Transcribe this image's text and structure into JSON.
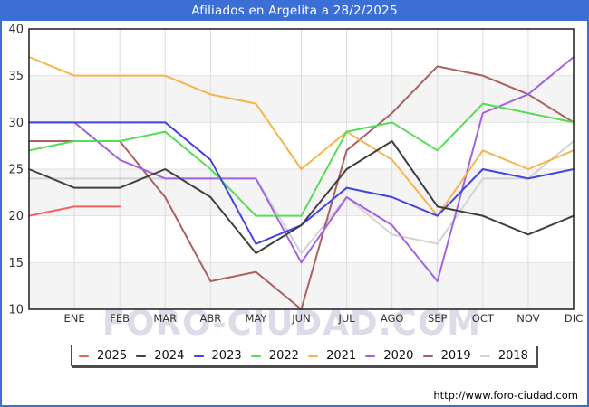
{
  "title": "Afiliados en Argelita a 28/2/2025",
  "watermark": "FORO-CIUDAD.COM",
  "footer": {
    "url_label": "http://www.foro-ciudad.com"
  },
  "colors": {
    "frame_blue": "#3b6fd6",
    "band_gray": "#f4f4f4",
    "grid_h": "#e2e2e2",
    "grid_v": "#dcdcdc",
    "plot_border": "#2a2a2a",
    "axis_text": "#333333",
    "watermark_fill": "#dcdce9"
  },
  "chart_data": {
    "type": "line",
    "title": "Afiliados en Argelita a 28/2/2025",
    "x_labels": [
      "ENE",
      "FEB",
      "MAR",
      "ABR",
      "MAY",
      "JUN",
      "JUL",
      "AGO",
      "SEP",
      "OCT",
      "NOV",
      "DIC"
    ],
    "note": "Each series has 13 points: the first is the unlabeled value at the plot's left edge, followed by one value per month gridline. 2025 data ends at FEB.",
    "ylim": [
      10,
      40
    ],
    "y_ticks": [
      10,
      15,
      20,
      25,
      30,
      35,
      40
    ],
    "grid": true,
    "legend_position": "bottom",
    "band_fill_ranges": [
      [
        10,
        15
      ],
      [
        20,
        25
      ],
      [
        30,
        35
      ]
    ],
    "series": [
      {
        "name": "2025",
        "color": "#f26060",
        "values": [
          20,
          21,
          21
        ]
      },
      {
        "name": "2024",
        "color": "#404040",
        "values": [
          25,
          23,
          23,
          25,
          22,
          16,
          19,
          25,
          28,
          21,
          20,
          18,
          20
        ]
      },
      {
        "name": "2023",
        "color": "#4444e0",
        "values": [
          30,
          30,
          30,
          30,
          26,
          17,
          19,
          23,
          22,
          20,
          25,
          24,
          25
        ]
      },
      {
        "name": "2022",
        "color": "#55dd55",
        "values": [
          27,
          28,
          28,
          29,
          25,
          20,
          20,
          29,
          30,
          27,
          32,
          31,
          30
        ]
      },
      {
        "name": "2021",
        "color": "#f4b54f",
        "values": [
          37,
          35,
          35,
          35,
          33,
          32,
          25,
          29,
          26,
          20,
          27,
          25,
          27
        ]
      },
      {
        "name": "2020",
        "color": "#a263e2",
        "values": [
          30,
          30,
          26,
          24,
          24,
          24,
          15,
          22,
          19,
          13,
          31,
          33,
          37
        ]
      },
      {
        "name": "2019",
        "color": "#ac6060",
        "values": [
          28,
          28,
          28,
          22,
          13,
          14,
          10,
          27,
          31,
          36,
          35,
          33,
          30
        ]
      },
      {
        "name": "2018",
        "color": "#d3d3d3",
        "values": [
          24,
          24,
          24,
          24,
          24,
          24,
          16,
          22,
          18,
          17,
          24,
          24,
          28
        ]
      }
    ]
  }
}
